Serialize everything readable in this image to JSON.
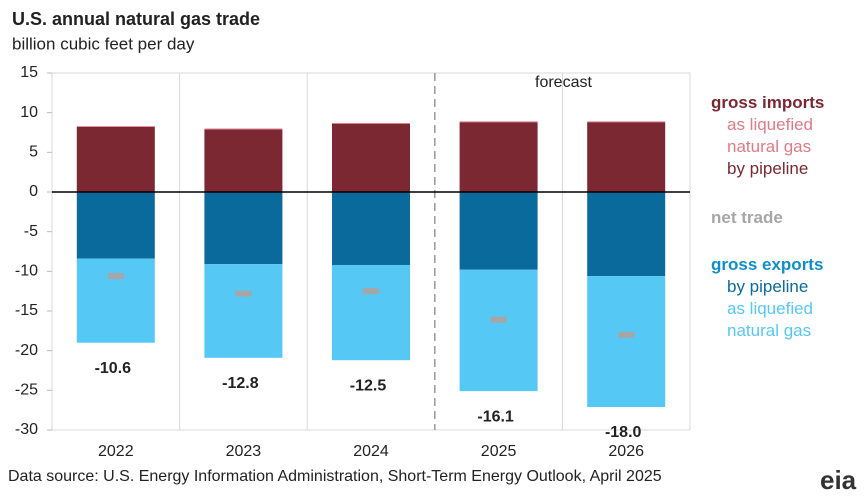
{
  "chart_data": {
    "type": "stacked-bar",
    "title": "U.S. annual natural gas trade",
    "subtitle": "billion  cubic  feet per day",
    "annotation": "forecast",
    "source": "Data source: U.S. Energy Information Administration,  Short-Term Energy Outlook, April 2025",
    "logo": "eia",
    "categories": [
      "2022",
      "2023",
      "2024",
      "2025",
      "2026"
    ],
    "forecast_start": "2025",
    "legend_headings": {
      "imports": "gross imports",
      "exports": "gross exports"
    },
    "series": [
      {
        "name": "by pipeline",
        "group": "imports",
        "color": "#7b2832",
        "values": [
          8.2,
          7.9,
          8.6,
          8.8,
          8.8
        ]
      },
      {
        "name": "as liquefied natural gas",
        "group": "imports",
        "color": "#e07a86",
        "values": [
          0.1,
          0.1,
          0.1,
          0.1,
          0.1
        ]
      },
      {
        "name": "by pipeline",
        "group": "exports",
        "color": "#0a6a9c",
        "values": [
          -8.4,
          -9.1,
          -9.2,
          -9.8,
          -10.6
        ]
      },
      {
        "name": "as liquefied natural gas",
        "group": "exports",
        "color": "#55c8f5",
        "values": [
          -10.6,
          -11.8,
          -12.0,
          -15.3,
          -16.5
        ]
      },
      {
        "name": "net trade",
        "group": "net",
        "marker": "dash",
        "color": "#a6a6a6",
        "values": [
          -10.6,
          -12.8,
          -12.5,
          -16.1,
          -18.0
        ],
        "value_labels": [
          "-10.6",
          "-12.8",
          "-12.5",
          "-16.1",
          "-18.0"
        ]
      }
    ],
    "ylim": [
      -30,
      15
    ],
    "yticks": [
      -30,
      -25,
      -20,
      -15,
      -10,
      -5,
      0,
      5,
      10,
      15
    ]
  }
}
